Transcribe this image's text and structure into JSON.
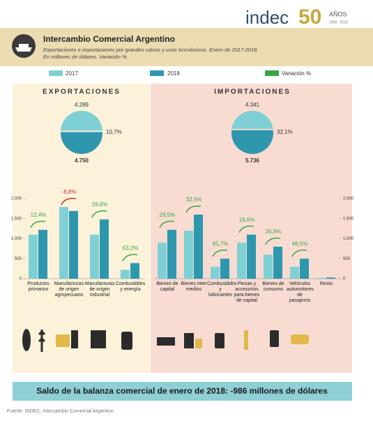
{
  "header": {
    "logo": "indec",
    "anniversary": "50",
    "anniversary_label": "AÑOS",
    "anniversary_years": "1968 · 2018",
    "title": "Intercambio Comercial Argentino",
    "subtitle": [
      "Exportaciones e importaciones por grandes rubros y usos económicos. Enero de 2017-2018.",
      "En millones de dólares. Variación %"
    ]
  },
  "chart_data": [
    {
      "type": "bar",
      "title": "EXPORTACIONES",
      "categories": [
        "Productos primarios",
        "Manufacturas de origen agropecuario",
        "Manufacturas de origen industrial",
        "Combustibles y energía"
      ],
      "series": [
        {
          "name": "2017",
          "color": "#7fd0d5",
          "values": [
            1100,
            1790,
            1100,
            220
          ]
        },
        {
          "name": "2018",
          "color": "#2e97ae",
          "values": [
            1220,
            1690,
            1480,
            390
          ]
        }
      ],
      "variation": {
        "name": "Variación %",
        "color": "#3aa547",
        "negative_color": "#c0392b",
        "values": [
          12.4,
          -8.8,
          29.6,
          63.2
        ],
        "value_labels": [
          "12,4%",
          "-8,8%",
          "29,6%",
          "63,2%"
        ]
      },
      "totals": {
        "values": [
          4289,
          4750
        ],
        "value_labels": [
          "4.289",
          "4.750"
        ],
        "change": 10.7,
        "change_label": "10,7%"
      },
      "ylim": [
        0,
        2000
      ],
      "yticks": [
        0,
        500,
        {
          "value": 1000,
          "label": "1.000"
        },
        {
          "value": 1500,
          "label": "1.500"
        },
        {
          "value": 2000,
          "label": "2.000"
        }
      ]
    },
    {
      "type": "bar",
      "title": "IMPORTACIONES",
      "categories": [
        "Bienes de capital",
        "Bienes inter medios",
        "Combustibles y lubricantes",
        "Piezas y accesorios para bienes de capital",
        "Bienes de consumo",
        "Vehículos automotores de pasajeros",
        "Resto"
      ],
      "series": [
        {
          "color": "#7fd0d5",
          "values": [
            900,
            1200,
            300,
            900,
            600,
            300,
            20
          ]
        },
        {
          "color": "#2e97ae",
          "values": [
            1220,
            1600,
            500,
            1100,
            800,
            500,
            30
          ]
        }
      ],
      "variation": {
        "color": "#3aa547",
        "negative_color": "#c0392b",
        "values": [
          29.5,
          32.6,
          85.7,
          16.6,
          26.8,
          48.5,
          null
        ],
        "value_labels": [
          "29,5%",
          "32,6%",
          "85,7%",
          "16,6%",
          "26,8%",
          "48,5%",
          null
        ]
      },
      "totals": {
        "values": [
          4341,
          5736
        ],
        "value_labels": [
          "4.341",
          "5.736"
        ],
        "change": 32.1,
        "change_label": "32,1%"
      },
      "ylim": [
        0,
        2000
      ],
      "yticks": [
        0,
        500,
        {
          "value": 1000,
          "label": "1.000"
        },
        {
          "value": 1500,
          "label": "1.500"
        },
        {
          "value": 2000,
          "label": "2.000"
        }
      ]
    }
  ],
  "footer": {
    "summary": "Saldo de la balanza comercial de enero de 2018: -986 millones de dólares",
    "source": "Fuente: INDEC, Intercambio Comercial Argentino"
  }
}
